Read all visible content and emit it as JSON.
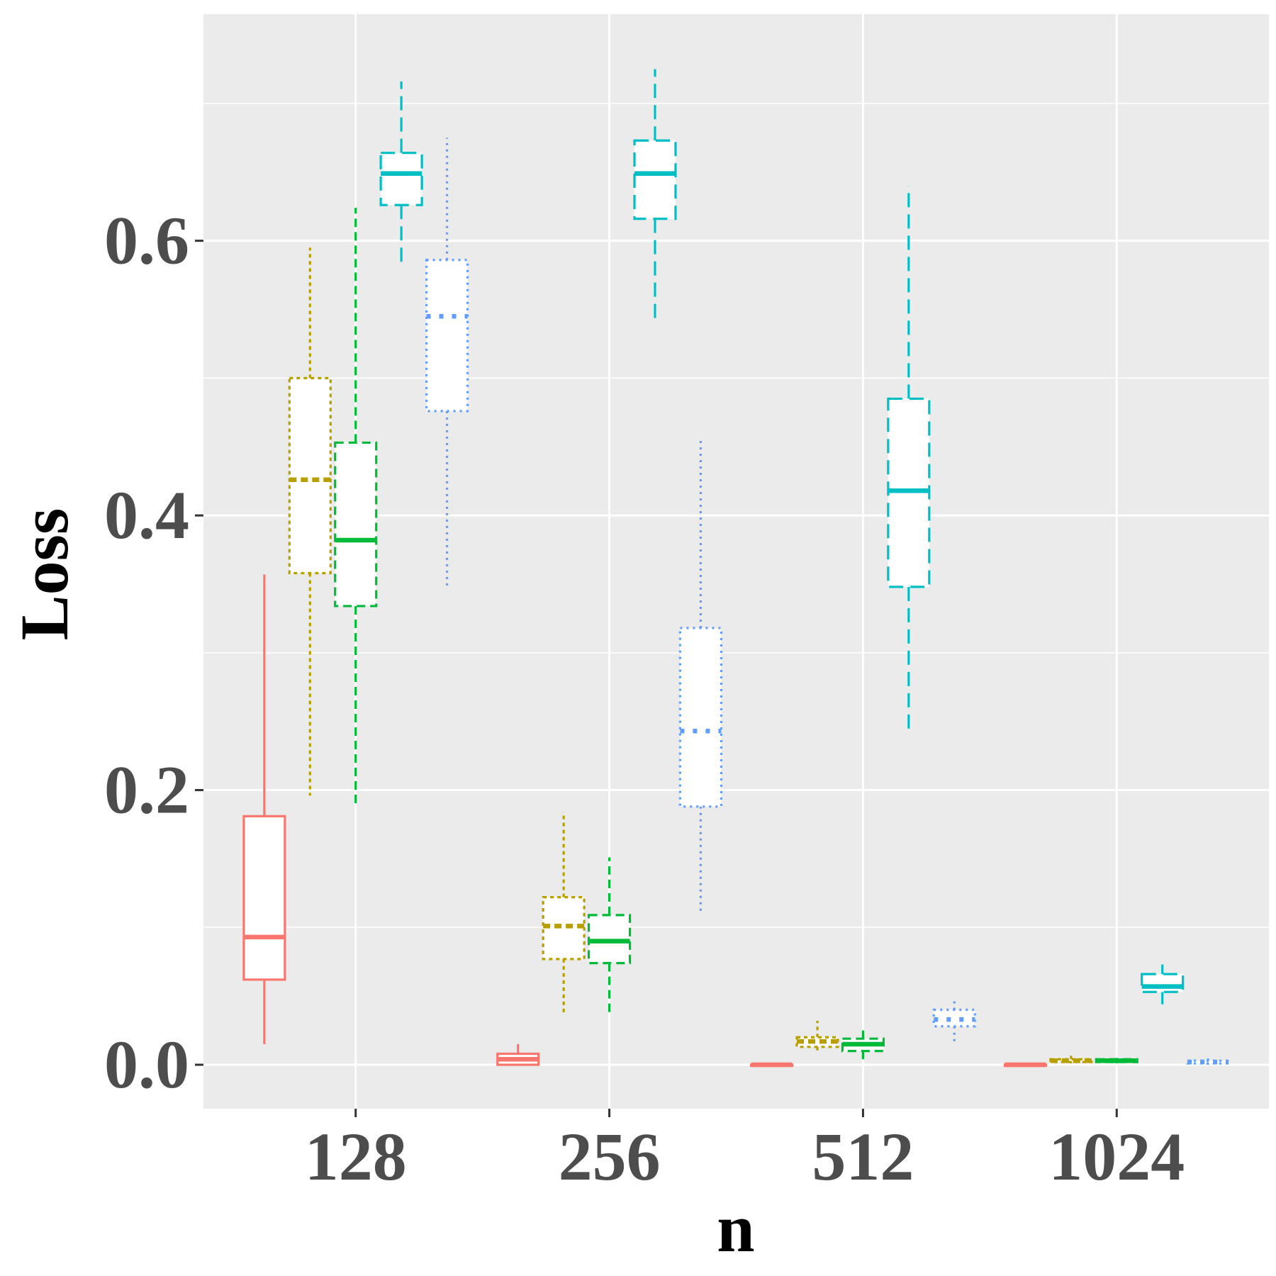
{
  "chart_data": {
    "type": "boxplot",
    "xlabel": "n",
    "ylabel": "Loss",
    "categories": [
      "128",
      "256",
      "512",
      "1024"
    ],
    "y_ticks": [
      "0.0",
      "0.2",
      "0.4",
      "0.6"
    ],
    "ylim": [
      -0.032,
      0.765
    ],
    "grid": true,
    "legend": "none",
    "series": [
      {
        "color": "#F8766D",
        "linetype": "solid",
        "boxes": [
          {
            "min": 0.015,
            "q1": 0.062,
            "median": 0.093,
            "q3": 0.181,
            "max": 0.357
          },
          {
            "min": 0.0,
            "q1": 0.0,
            "median": 0.004,
            "q3": 0.008,
            "max": 0.015
          },
          {
            "min": 0.0,
            "q1": 0.0,
            "median": 0.0,
            "q3": 0.0,
            "max": 0.0
          },
          {
            "min": 0.0,
            "q1": 0.0,
            "median": 0.0,
            "q3": 0.0,
            "max": 0.0
          }
        ]
      },
      {
        "color": "#B79F00",
        "linetype": "dotted",
        "boxes": [
          {
            "min": 0.196,
            "q1": 0.358,
            "median": 0.426,
            "q3": 0.5,
            "max": 0.595
          },
          {
            "min": 0.036,
            "q1": 0.077,
            "median": 0.101,
            "q3": 0.122,
            "max": 0.184
          },
          {
            "min": 0.01,
            "q1": 0.013,
            "median": 0.017,
            "q3": 0.02,
            "max": 0.032
          },
          {
            "min": 0.001,
            "q1": 0.002,
            "median": 0.003,
            "q3": 0.004,
            "max": 0.007
          }
        ]
      },
      {
        "color": "#00BA38",
        "linetype": "dashed",
        "boxes": [
          {
            "min": 0.188,
            "q1": 0.334,
            "median": 0.382,
            "q3": 0.453,
            "max": 0.624
          },
          {
            "min": 0.036,
            "q1": 0.074,
            "median": 0.09,
            "q3": 0.109,
            "max": 0.151
          },
          {
            "min": 0.004,
            "q1": 0.01,
            "median": 0.015,
            "q3": 0.019,
            "max": 0.025
          },
          {
            "min": 0.001,
            "q1": 0.002,
            "median": 0.003,
            "q3": 0.004,
            "max": 0.005
          }
        ]
      },
      {
        "color": "#00BFC4",
        "linetype": "longdash",
        "boxes": [
          {
            "min": 0.583,
            "q1": 0.626,
            "median": 0.649,
            "q3": 0.664,
            "max": 0.716
          },
          {
            "min": 0.541,
            "q1": 0.616,
            "median": 0.649,
            "q3": 0.673,
            "max": 0.725
          },
          {
            "min": 0.241,
            "q1": 0.348,
            "median": 0.418,
            "q3": 0.485,
            "max": 0.64
          },
          {
            "min": 0.044,
            "q1": 0.053,
            "median": 0.057,
            "q3": 0.066,
            "max": 0.073
          }
        ]
      },
      {
        "color": "#619CFF",
        "linetype": "dotted-fine",
        "boxes": [
          {
            "min": 0.348,
            "q1": 0.476,
            "median": 0.545,
            "q3": 0.586,
            "max": 0.675
          },
          {
            "min": 0.11,
            "q1": 0.188,
            "median": 0.243,
            "q3": 0.318,
            "max": 0.455
          },
          {
            "min": 0.017,
            "q1": 0.028,
            "median": 0.033,
            "q3": 0.04,
            "max": 0.049
          },
          {
            "min": 0.0,
            "q1": 0.001,
            "median": 0.002,
            "q3": 0.003,
            "max": 0.005
          }
        ]
      }
    ]
  }
}
